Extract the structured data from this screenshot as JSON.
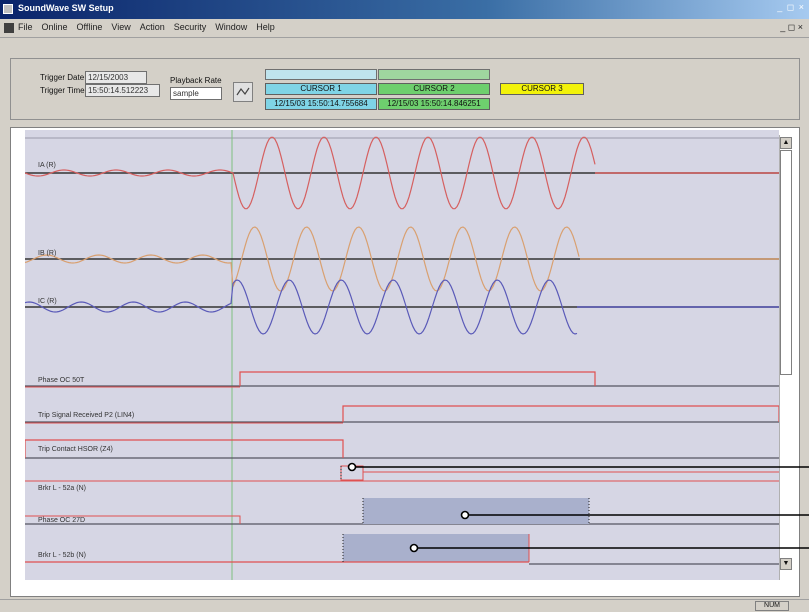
{
  "window": {
    "title": "SoundWave SW Setup",
    "controls": "_ ◻ ×",
    "mdi_controls": "_ ◻ ×"
  },
  "menu": {
    "items": [
      "File",
      "Online",
      "Offline",
      "View",
      "Action",
      "Security",
      "Window",
      "Help"
    ]
  },
  "toolbar": {
    "trigger_date_label": "Trigger Date",
    "trigger_date_value": "12/15/2003",
    "trigger_time_label": "Trigger Time",
    "trigger_time_value": "15:50:14.512223",
    "playback_rate_label": "Playback Rate",
    "playback_rate_value": "sample",
    "cursor_a_label": "CURSOR 1",
    "cursor_a_value": "12/15/03 15:50:14.755684",
    "cursor_b_label": "CURSOR 2",
    "cursor_b_value": "12/15/03 15:50:14.846251",
    "cursor_c_label": "CURSOR 3",
    "colors": {
      "cursor_a": "#7fd4e6",
      "cursor_b": "#6ecf6e",
      "cursor_c": "#f2f20a"
    }
  },
  "plot": {
    "channels": [
      "IA (R)",
      "IB (R)",
      "IC (R)",
      "Phase OC 50T",
      "Trip Signal Received P2 (LIN4)",
      "Trip Contact HSOR (Z4)",
      "Brkr L - 52a (N)",
      "Phase OC 27D",
      "Brkr L - 52b (N)"
    ],
    "colors": {
      "wave_ia": "#d56060",
      "wave_ib": "#d9a070",
      "wave_ic": "#5a5ab8",
      "trace_hi": "#e05050",
      "trace_lo": "#555560",
      "highlight": "#a9b0cc",
      "trigger_line": "#7fc07f"
    }
  },
  "status": {
    "panel": "NUM"
  }
}
